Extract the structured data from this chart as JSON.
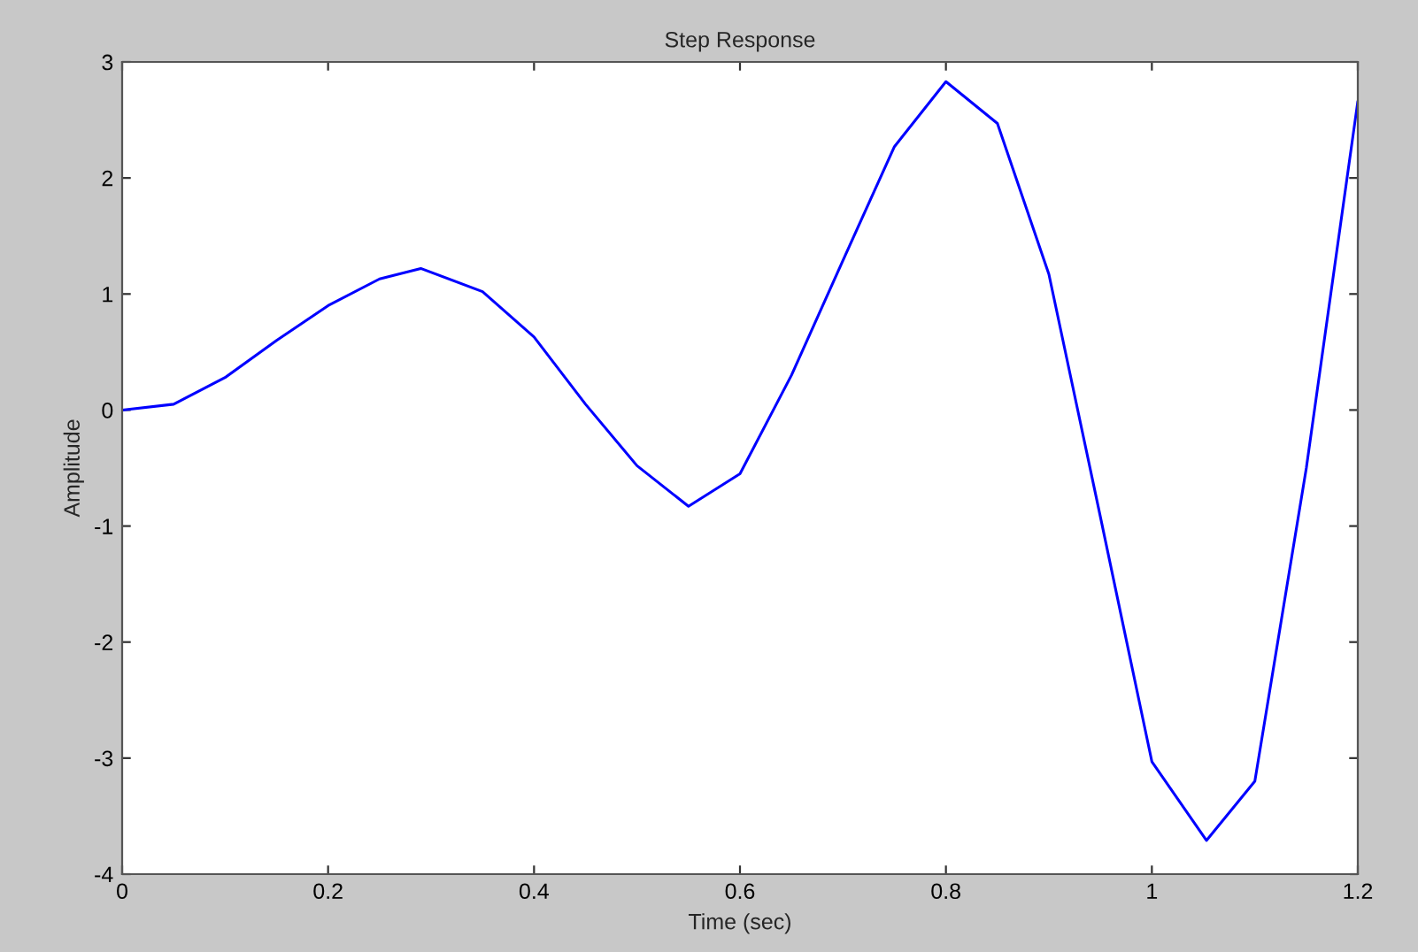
{
  "chart_data": {
    "type": "line",
    "title": "Step Response",
    "xlabel": "Time (sec)",
    "ylabel": "Amplitude",
    "x": [
      0,
      0.05,
      0.1,
      0.15,
      0.2,
      0.25,
      0.29,
      0.35,
      0.4,
      0.45,
      0.5,
      0.55,
      0.6,
      0.65,
      0.7,
      0.75,
      0.8,
      0.85,
      0.9,
      0.95,
      1.0,
      1.053,
      1.1,
      1.15,
      1.2
    ],
    "series": [
      {
        "color": "#0000ff",
        "values": [
          0,
          0.05,
          0.28,
          0.6,
          0.9,
          1.13,
          1.22,
          1.02,
          0.63,
          0.05,
          -0.48,
          -0.83,
          -0.55,
          0.3,
          1.29,
          2.27,
          2.83,
          2.47,
          1.17,
          -0.92,
          -3.03,
          -3.71,
          -3.2,
          -0.5,
          2.66
        ]
      }
    ],
    "xlim": [
      0,
      1.2
    ],
    "ylim": [
      -4,
      3
    ],
    "xticks": [
      0,
      0.2,
      0.4,
      0.6,
      0.8,
      1,
      1.2
    ],
    "yticks": [
      -4,
      -3,
      -2,
      -1,
      0,
      1,
      2,
      3
    ],
    "grid": false
  }
}
